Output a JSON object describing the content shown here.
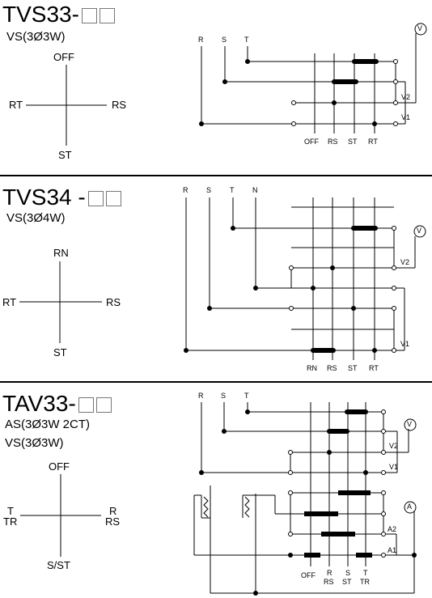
{
  "sections": [
    {
      "model": "TVS33-",
      "subtitle_lines": [
        "VS(3Ø3W)"
      ],
      "positions": {
        "top": "OFF",
        "left": "RT",
        "right": "RS",
        "bottom": "ST"
      },
      "phase_labels": [
        "R",
        "S",
        "T"
      ],
      "contact_labels": [
        "OFF",
        "RS",
        "ST",
        "RT"
      ],
      "meter_labels": [
        "V2",
        "V1"
      ],
      "meter_symbols": [
        "V"
      ]
    },
    {
      "model": "TVS34 -",
      "subtitle_lines": [
        "VS(3Ø4W)"
      ],
      "positions": {
        "top": "RN",
        "left": "RT",
        "right": "RS",
        "bottom": "ST"
      },
      "phase_labels": [
        "R",
        "S",
        "T",
        "N"
      ],
      "contact_labels": [
        "RN",
        "RS",
        "ST",
        "RT"
      ],
      "meter_labels": [
        "V2",
        "V1"
      ],
      "meter_symbols": [
        "V"
      ]
    },
    {
      "model": "TAV33-",
      "subtitle_lines": [
        "AS(3Ø3W 2CT)",
        "VS(3Ø3W)"
      ],
      "positions": {
        "top": "OFF",
        "left_1": "T",
        "left_2": "TR",
        "right_1": "R",
        "right_2": "RS",
        "bottom": "S/ST"
      },
      "phase_labels": [
        "R",
        "S",
        "T"
      ],
      "contact_labels_top": [
        "OFF",
        "R",
        "S",
        "T"
      ],
      "contact_labels_bottom": [
        "RS",
        "ST",
        "TR"
      ],
      "meter_labels": [
        "V2",
        "V1",
        "A2",
        "A1"
      ],
      "meter_symbols": [
        "V",
        "A"
      ]
    }
  ]
}
